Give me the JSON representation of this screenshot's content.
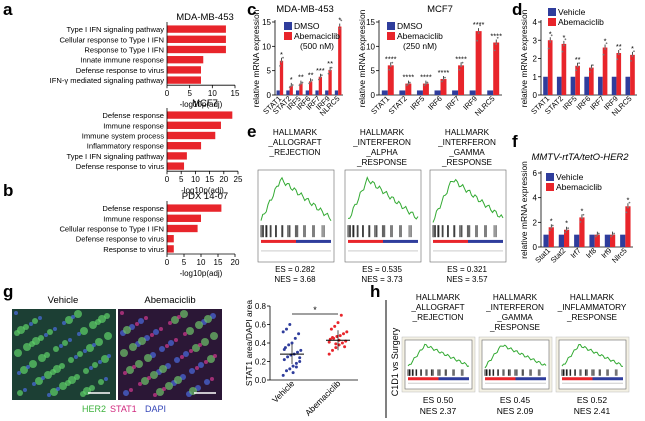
{
  "panels": {
    "a": {
      "letter": "a"
    },
    "b": {
      "letter": "b"
    },
    "c": {
      "letter": "c"
    },
    "d": {
      "letter": "d"
    },
    "e": {
      "letter": "e"
    },
    "f": {
      "letter": "f"
    },
    "g": {
      "letter": "g"
    },
    "h": {
      "letter": "h"
    }
  },
  "colors": {
    "red": "#e8252b",
    "blue": "#2f3d9c",
    "green": "#33aa33"
  },
  "chart_data": [
    {
      "id": "a1",
      "type": "bar",
      "title": "MDA-MB-453",
      "orientation": "horizontal",
      "categories": [
        "Type I IFN signaling pathway",
        "Cellular response to Type I IFN",
        "Response to Type I IFN",
        "Innate immune response",
        "Defense response to virus",
        "IFN-γ mediated signaling pathway"
      ],
      "values": [
        13,
        13,
        13,
        8,
        7.5,
        7.5
      ],
      "xlabel": "-log10p(adj)",
      "xlim": [
        0,
        15
      ],
      "xticks": [
        "0",
        "5",
        "10",
        "15"
      ]
    },
    {
      "id": "a2",
      "type": "bar",
      "title": "MCF7",
      "orientation": "horizontal",
      "categories": [
        "Defense response",
        "Immune response",
        "Immune system process",
        "Inflammatory response",
        "Type I IFN signaling pathway",
        "Defense response to virus"
      ],
      "values": [
        23,
        19,
        17,
        12,
        7,
        6
      ],
      "xlabel": "-log10p(adj)",
      "xlim": [
        0,
        25
      ],
      "xticks": [
        "0",
        "5",
        "10",
        "15",
        "20",
        "25"
      ]
    },
    {
      "id": "b",
      "type": "bar",
      "title": "PDX 14-07",
      "orientation": "horizontal",
      "categories": [
        "Defense response",
        "Immune response",
        "Cellular response to Type I IFN",
        "Defense response to virus",
        "Response to virus"
      ],
      "values": [
        16,
        10,
        9,
        2,
        2
      ],
      "xlabel": "-log10p(adj)",
      "xlim": [
        0,
        20
      ],
      "xticks": [
        "0",
        "5",
        "10",
        "15",
        "20"
      ]
    },
    {
      "id": "c1",
      "type": "bar",
      "title": "MDA-MB-453",
      "categories": [
        "STAT1",
        "STAT2",
        "IRF5",
        "IRF6",
        "IRF7",
        "IRF9",
        "NLRC5"
      ],
      "series": [
        {
          "name": "DMSO",
          "values": [
            1,
            1,
            1,
            1,
            1,
            1,
            1
          ]
        },
        {
          "name": "Abemaciclib (500 nM)",
          "values": [
            7.5,
            2,
            2.5,
            3,
            4,
            5.5,
            15
          ]
        }
      ],
      "sig": [
        "*",
        "*",
        "**",
        "**",
        "***",
        "**",
        "*"
      ],
      "ylabel": "relative mRNA expression",
      "ylim": [
        0,
        16
      ],
      "yticks": [
        "0",
        "5",
        "10",
        "15"
      ]
    },
    {
      "id": "c2",
      "type": "bar",
      "title": "MCF7",
      "categories": [
        "STAT1",
        "STAT2",
        "IRF5",
        "IRF6",
        "IRF7",
        "IRF9",
        "NLRC5"
      ],
      "series": [
        {
          "name": "DMSO",
          "values": [
            1,
            1,
            1,
            1,
            1,
            1,
            1
          ]
        },
        {
          "name": "Abemaciclib (250 nM)",
          "values": [
            6.5,
            2.5,
            2.5,
            3.5,
            6.5,
            14,
            11.5
          ]
        }
      ],
      "sig": [
        "****",
        "****",
        "****",
        "****",
        "****",
        "****",
        "****"
      ],
      "ylabel": "relative mRNA expression",
      "ylim": [
        0,
        16
      ],
      "yticks": [
        "0",
        "5",
        "10",
        "15"
      ]
    },
    {
      "id": "d",
      "type": "bar",
      "categories": [
        "STAT1",
        "STAT2",
        "IRF5",
        "IRF6",
        "IRF7",
        "IRF9",
        "NLRC5"
      ],
      "series": [
        {
          "name": "Vehicle",
          "values": [
            1,
            1,
            1,
            1,
            1,
            1,
            1
          ]
        },
        {
          "name": "Abemaciclib",
          "values": [
            3,
            2.8,
            1.6,
            1.5,
            2.6,
            2.3,
            2.2
          ]
        }
      ],
      "sig": [
        "*",
        "*",
        "**",
        "",
        "*",
        "**",
        "*"
      ],
      "ylabel": "relative mRNA expression",
      "ylim": [
        0,
        4
      ],
      "yticks": [
        "0",
        "1",
        "2",
        "3",
        "4"
      ]
    },
    {
      "id": "f",
      "type": "bar",
      "title": "MMTV-rtTA/tetO-HER2",
      "categories": [
        "Stat1",
        "Stat2",
        "Irf7",
        "Irf8",
        "Irf9",
        "Nlrc5"
      ],
      "series": [
        {
          "name": "Vehicle",
          "values": [
            1,
            1,
            1,
            1,
            1,
            1
          ]
        },
        {
          "name": "Abemaciclib",
          "values": [
            1.6,
            1.4,
            2.4,
            1.0,
            1.0,
            3.3
          ]
        }
      ],
      "sig": [
        "*",
        "*",
        "*",
        "",
        "",
        "*"
      ],
      "ylabel": "relative mRNA expression",
      "ylim": [
        0,
        6
      ],
      "yticks": [
        "0",
        "2",
        "4",
        "6"
      ]
    },
    {
      "id": "g",
      "type": "scatter",
      "categories": [
        "Vehicle",
        "Abemaciclib"
      ],
      "series": [
        {
          "name": "Vehicle",
          "values": [
            0.05,
            0.1,
            0.12,
            0.15,
            0.18,
            0.2,
            0.22,
            0.25,
            0.27,
            0.28,
            0.3,
            0.32,
            0.35,
            0.38,
            0.4,
            0.45,
            0.5,
            0.52,
            0.55,
            0.6,
            0.08,
            0.14,
            0.24,
            0.33
          ]
        },
        {
          "name": "Abemaciclib",
          "values": [
            0.28,
            0.32,
            0.35,
            0.38,
            0.4,
            0.42,
            0.44,
            0.45,
            0.47,
            0.48,
            0.5,
            0.52,
            0.55,
            0.58,
            0.62,
            0.7,
            0.36,
            0.41,
            0.46,
            0.39,
            0.43
          ]
        }
      ],
      "means": [
        0.28,
        0.43
      ],
      "sig": "*",
      "ylabel": "STAT1 area/DAPI area",
      "ylim": [
        0,
        0.8
      ],
      "yticks": [
        "0.0",
        "0.2",
        "0.4",
        "0.6",
        "0.8"
      ]
    }
  ],
  "gsea_e": [
    {
      "title1": "HALLMARK",
      "title2": "_ALLOGRAFT",
      "title3": "_REJECTION",
      "es": "ES = 0.282",
      "nes": "NES = 3.68"
    },
    {
      "title1": "HALLMARK",
      "title2": "_INTERFERON",
      "title3": "_ALPHA",
      "title4": "_RESPONSE",
      "es": "ES = 0.535",
      "nes": "NES = 3.73"
    },
    {
      "title1": "HALLMARK",
      "title2": "_INTERFERON",
      "title3": "_GAMMA",
      "title4": "_RESPONSE",
      "es": "ES = 0.321",
      "nes": "NES = 3.57"
    }
  ],
  "gsea_h": {
    "side_label": "C1D1 vs Surgery",
    "plots": [
      {
        "title1": "HALLMARK",
        "title2": "_ALLOGRAFT",
        "title3": "_REJECTION",
        "es": "ES 0.50",
        "nes": "NES 2.37"
      },
      {
        "title1": "HALLMARK",
        "title2": "_INTERFERON",
        "title3": "_GAMMA",
        "title4": "_RESPONSE",
        "es": "ES 0.45",
        "nes": "NES 2.09"
      },
      {
        "title1": "HALLMARK",
        "title2": "_INFLAMMATORY",
        "title3": "_RESPONSE",
        "es": "ES 0.52",
        "nes": "NES 2.41"
      }
    ]
  },
  "micro": {
    "vehicle_label": "Vehicle",
    "abema_label": "Abemaciclib",
    "stain_her2": "HER2",
    "stain_stat1": "STAT1",
    "stain_dapi": "DAPI"
  }
}
